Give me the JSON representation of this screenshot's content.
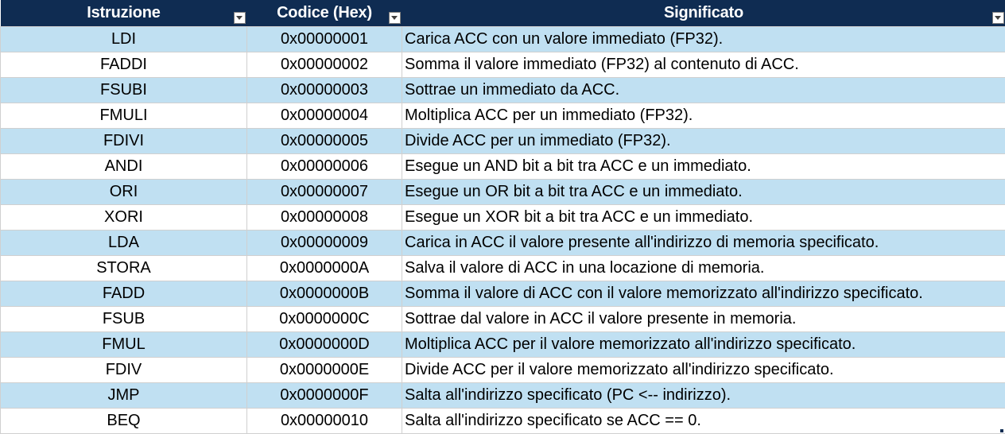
{
  "table": {
    "headers": [
      "Istruzione",
      "Codice (Hex)",
      "Significato"
    ],
    "rows": [
      [
        "LDI",
        "0x00000001",
        "Carica ACC con un valore immediato (FP32)."
      ],
      [
        "FADDI",
        "0x00000002",
        "Somma il valore immediato (FP32) al contenuto di ACC."
      ],
      [
        "FSUBI",
        "0x00000003",
        "Sottrae un immediato da ACC."
      ],
      [
        "FMULI",
        "0x00000004",
        "Moltiplica ACC per un immediato (FP32)."
      ],
      [
        "FDIVI",
        "0x00000005",
        "Divide ACC per un immediato (FP32)."
      ],
      [
        "ANDI",
        "0x00000006",
        "Esegue un AND bit a bit tra ACC e un immediato."
      ],
      [
        "ORI",
        "0x00000007",
        "Esegue un OR bit a bit tra ACC e un immediato."
      ],
      [
        "XORI",
        "0x00000008",
        "Esegue un XOR bit a bit tra ACC e un immediato."
      ],
      [
        "LDA",
        "0x00000009",
        "Carica in ACC il valore presente all'indirizzo di memoria specificato."
      ],
      [
        "STORA",
        "0x0000000A",
        "Salva il valore di ACC in una locazione di memoria."
      ],
      [
        "FADD",
        "0x0000000B",
        "Somma il valore di ACC con il valore memorizzato all'indirizzo specificato."
      ],
      [
        "FSUB",
        "0x0000000C",
        "Sottrae dal valore in ACC il valore presente in memoria."
      ],
      [
        "FMUL",
        "0x0000000D",
        "Moltiplica ACC per il valore memorizzato all'indirizzo specificato."
      ],
      [
        "FDIV",
        "0x0000000E",
        "Divide ACC per il valore memorizzato all'indirizzo specificato."
      ],
      [
        "JMP",
        "0x0000000F",
        "Salta all'indirizzo specificato (PC <-- indirizzo)."
      ],
      [
        "BEQ",
        "0x00000010",
        "Salta all'indirizzo specificato se ACC == 0."
      ]
    ]
  },
  "colors": {
    "header_bg": "#0f2c52",
    "header_text": "#ffffff",
    "band_bg": "#c0e0f2",
    "row_bg": "#ffffff"
  },
  "icons": {
    "filter": "filter-dropdown-icon",
    "resize": "table-resize-handle-icon"
  }
}
